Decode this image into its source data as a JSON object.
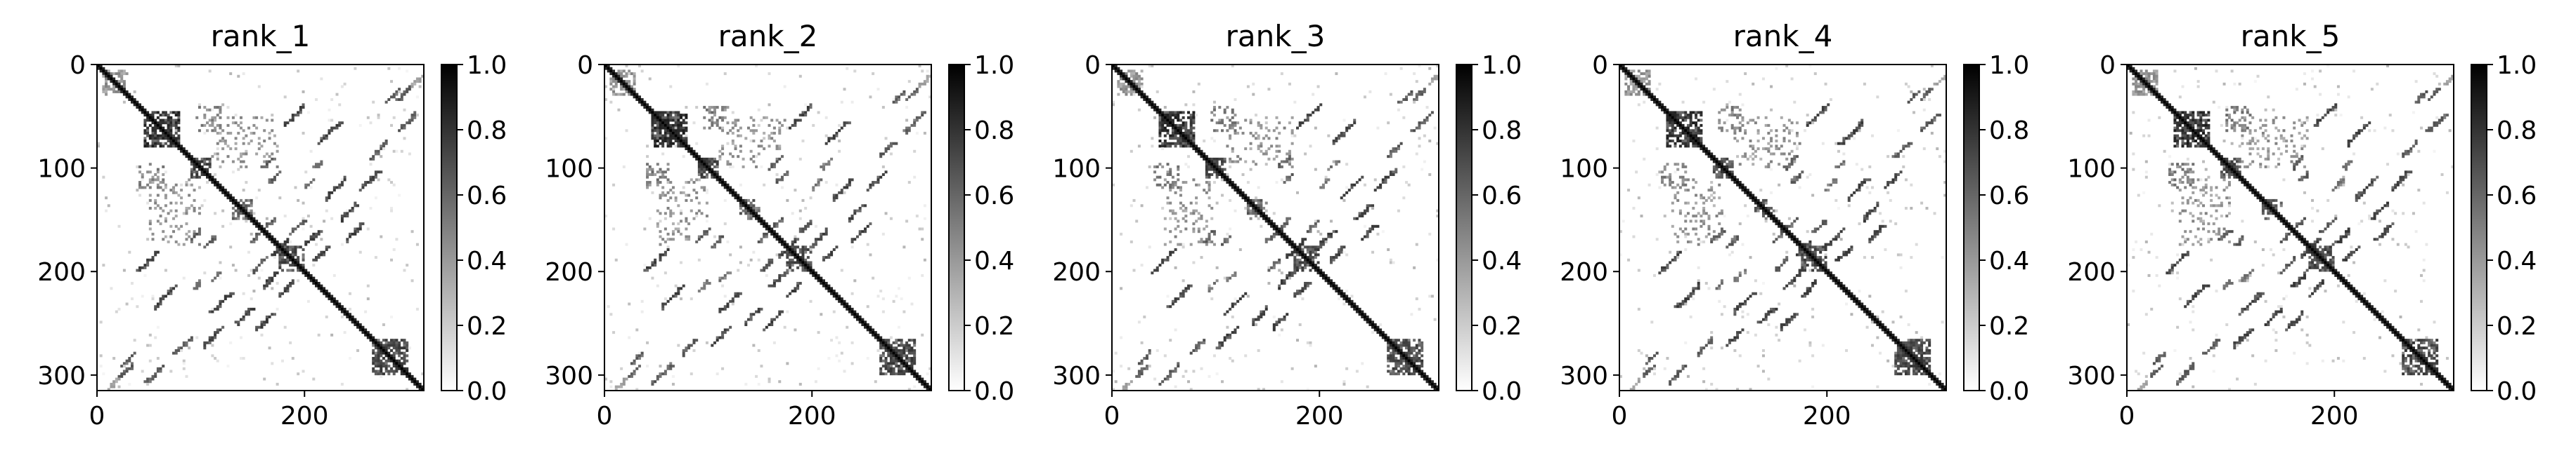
{
  "chart_data": [
    {
      "type": "heatmap",
      "title": "rank_1",
      "xlim": [
        0,
        315
      ],
      "ylim": [
        315,
        0
      ],
      "x_ticks": [
        0,
        200
      ],
      "y_ticks": [
        0,
        100,
        200,
        300
      ],
      "colorbar": {
        "cmap": "Greys",
        "range": [
          0.0,
          1.0
        ],
        "ticks": [
          "0.0",
          "0.2",
          "0.4",
          "0.6",
          "0.8",
          "1.0"
        ]
      },
      "matrix_size": 315
    },
    {
      "type": "heatmap",
      "title": "rank_2",
      "xlim": [
        0,
        315
      ],
      "ylim": [
        315,
        0
      ],
      "x_ticks": [
        0,
        200
      ],
      "y_ticks": [
        0,
        100,
        200,
        300
      ],
      "colorbar": {
        "cmap": "Greys",
        "range": [
          0.0,
          1.0
        ],
        "ticks": [
          "0.0",
          "0.2",
          "0.4",
          "0.6",
          "0.8",
          "1.0"
        ]
      },
      "matrix_size": 315
    },
    {
      "type": "heatmap",
      "title": "rank_3",
      "xlim": [
        0,
        315
      ],
      "ylim": [
        315,
        0
      ],
      "x_ticks": [
        0,
        200
      ],
      "y_ticks": [
        0,
        100,
        200,
        300
      ],
      "colorbar": {
        "cmap": "Greys",
        "range": [
          0.0,
          1.0
        ],
        "ticks": [
          "0.0",
          "0.2",
          "0.4",
          "0.6",
          "0.8",
          "1.0"
        ]
      },
      "matrix_size": 315
    },
    {
      "type": "heatmap",
      "title": "rank_4",
      "xlim": [
        0,
        315
      ],
      "ylim": [
        315,
        0
      ],
      "x_ticks": [
        0,
        200
      ],
      "y_ticks": [
        0,
        100,
        200,
        300
      ],
      "colorbar": {
        "cmap": "Greys",
        "range": [
          0.0,
          1.0
        ],
        "ticks": [
          "0.0",
          "0.2",
          "0.4",
          "0.6",
          "0.8",
          "1.0"
        ]
      },
      "matrix_size": 315
    },
    {
      "type": "heatmap",
      "title": "rank_5",
      "xlim": [
        0,
        315
      ],
      "ylim": [
        315,
        0
      ],
      "x_ticks": [
        0,
        200
      ],
      "y_ticks": [
        0,
        100,
        200,
        300
      ],
      "colorbar": {
        "cmap": "Greys",
        "range": [
          0.0,
          1.0
        ],
        "ticks": [
          "0.0",
          "0.2",
          "0.4",
          "0.6",
          "0.8",
          "1.0"
        ]
      },
      "matrix_size": 315
    }
  ],
  "contact_features": [
    {
      "kind": "diagonal",
      "from": 0,
      "to": 315,
      "v": 1.0
    },
    {
      "kind": "cluster",
      "x0": 45,
      "x1": 80,
      "y0": 45,
      "y1": 80,
      "density": 0.55,
      "v": 0.9
    },
    {
      "kind": "cluster",
      "x0": 95,
      "x1": 120,
      "y0": 40,
      "y1": 65,
      "density": 0.18,
      "v": 0.6
    },
    {
      "kind": "cluster",
      "x0": 110,
      "x1": 175,
      "y0": 50,
      "y1": 100,
      "density": 0.08,
      "v": 0.5
    },
    {
      "kind": "antidiag",
      "x": 200,
      "y": 40,
      "len": 40,
      "v": 0.8
    },
    {
      "kind": "antidiag",
      "x": 235,
      "y": 55,
      "len": 45,
      "v": 0.8
    },
    {
      "kind": "antidiag",
      "x": 290,
      "y": 25,
      "len": 25,
      "v": 0.7
    },
    {
      "kind": "antidiag",
      "x": 240,
      "y": 110,
      "len": 40,
      "v": 0.8
    },
    {
      "kind": "antidiag",
      "x": 200,
      "y": 150,
      "len": 25,
      "v": 0.7
    },
    {
      "kind": "antidiag",
      "x": 255,
      "y": 155,
      "len": 30,
      "v": 0.8
    },
    {
      "kind": "antidiag",
      "x": 175,
      "y": 105,
      "len": 18,
      "v": 0.7
    },
    {
      "kind": "antidiag",
      "x": 160,
      "y": 160,
      "len": 22,
      "v": 0.7
    },
    {
      "kind": "antidiag",
      "x": 185,
      "y": 170,
      "len": 30,
      "v": 0.8
    },
    {
      "kind": "antidiag",
      "x": 215,
      "y": 160,
      "len": 30,
      "v": 0.8
    },
    {
      "kind": "antidiag",
      "x": 190,
      "y": 210,
      "len": 28,
      "v": 0.8
    },
    {
      "kind": "antidiag",
      "x": 150,
      "y": 235,
      "len": 30,
      "v": 0.8
    },
    {
      "kind": "antidiag",
      "x": 120,
      "y": 255,
      "len": 35,
      "v": 0.8
    },
    {
      "kind": "antidiag",
      "x": 90,
      "y": 265,
      "len": 30,
      "v": 0.7
    },
    {
      "kind": "antidiag",
      "x": 65,
      "y": 290,
      "len": 35,
      "v": 0.7
    },
    {
      "kind": "antidiag",
      "x": 35,
      "y": 290,
      "len": 25,
      "v": 0.7
    },
    {
      "kind": "antidiag",
      "x": 20,
      "y": 305,
      "len": 20,
      "v": 0.4
    },
    {
      "kind": "antidiag",
      "x": 100,
      "y": 160,
      "len": 22,
      "v": 0.7
    },
    {
      "kind": "antidiag",
      "x": 120,
      "y": 200,
      "len": 18,
      "v": 0.6
    },
    {
      "kind": "antidiag",
      "x": 100,
      "y": 210,
      "len": 15,
      "v": 0.6
    },
    {
      "kind": "cluster",
      "x0": 265,
      "x1": 300,
      "y0": 265,
      "y1": 300,
      "density": 0.3,
      "v": 0.8
    },
    {
      "kind": "cluster",
      "x0": 175,
      "x1": 200,
      "y0": 175,
      "y1": 195,
      "density": 0.3,
      "v": 0.8
    },
    {
      "kind": "cluster",
      "x0": 130,
      "x1": 150,
      "y0": 130,
      "y1": 145,
      "density": 0.25,
      "v": 0.7
    },
    {
      "kind": "cluster",
      "x0": 90,
      "x1": 110,
      "y0": 90,
      "y1": 108,
      "density": 0.3,
      "v": 0.8
    },
    {
      "kind": "cluster",
      "x0": 5,
      "x1": 30,
      "y0": 5,
      "y1": 30,
      "density": 0.2,
      "v": 0.5
    },
    {
      "kind": "noise",
      "count": 160,
      "v": 0.3
    }
  ]
}
